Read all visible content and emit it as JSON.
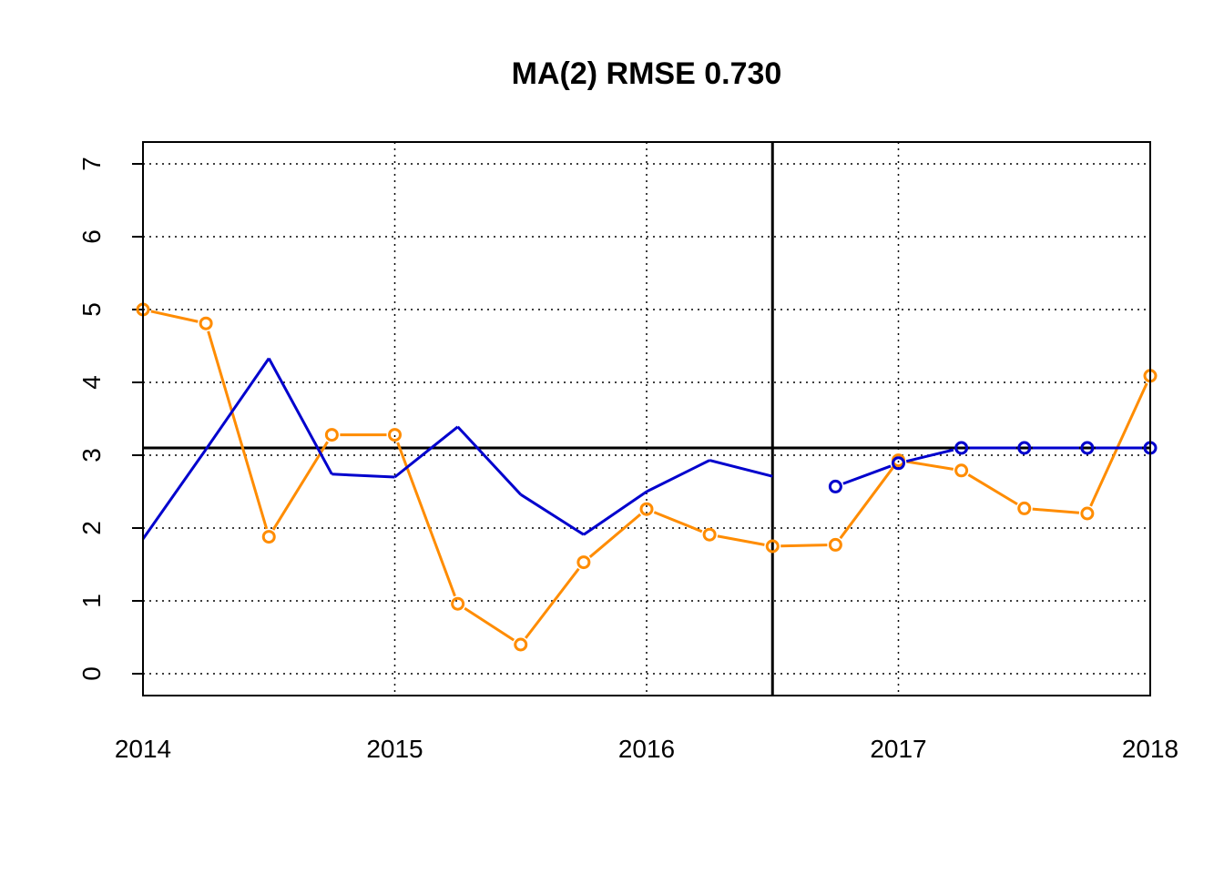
{
  "chart_data": {
    "type": "line",
    "title": "MA(2) RMSE 0.730",
    "xlabel": "",
    "ylabel": "",
    "xlim": [
      2014,
      2018
    ],
    "ylim": [
      -0.3,
      7.3
    ],
    "x_ticks": [
      2014,
      2015,
      2016,
      2017,
      2018
    ],
    "x_tick_labels": [
      "2014",
      "2015",
      "2016",
      "2017",
      "2018"
    ],
    "y_ticks": [
      0,
      1,
      2,
      3,
      4,
      5,
      6,
      7
    ],
    "y_tick_labels": [
      "0",
      "1",
      "2",
      "3",
      "4",
      "5",
      "6",
      "7"
    ],
    "grid": true,
    "reference_lines": {
      "horizontal": 3.1,
      "vertical": 2016.5
    },
    "series": [
      {
        "style": "line-with-hollow-points",
        "color": "#FF8C00",
        "x": [
          2014.0,
          2014.25,
          2014.5,
          2014.75,
          2015.0,
          2015.25,
          2015.5,
          2015.75,
          2016.0,
          2016.25,
          2016.5,
          2016.75,
          2017.0,
          2017.25,
          2017.5,
          2017.75,
          2018.0
        ],
        "y": [
          5.0,
          4.81,
          1.88,
          3.28,
          3.28,
          0.96,
          0.4,
          1.53,
          2.26,
          1.91,
          1.75,
          1.77,
          2.93,
          2.79,
          2.27,
          2.2,
          4.09
        ]
      },
      {
        "style": "line",
        "color": "#0000CD",
        "x": [
          2014.0,
          2014.25,
          2014.5,
          2014.75,
          2015.0,
          2015.25,
          2015.5,
          2015.75,
          2016.0,
          2016.25,
          2016.5
        ],
        "y": [
          1.85,
          3.08,
          4.33,
          2.74,
          2.7,
          3.39,
          2.46,
          1.91,
          2.5,
          2.93,
          2.71
        ]
      },
      {
        "style": "line-with-hollow-points",
        "color": "#0000CD",
        "x": [
          2016.75,
          2017.0,
          2017.25,
          2017.5,
          2017.75,
          2018.0
        ],
        "y": [
          2.57,
          2.89,
          3.1,
          3.1,
          3.1,
          3.1
        ]
      }
    ]
  }
}
